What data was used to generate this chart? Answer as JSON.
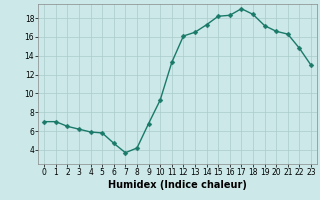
{
  "x": [
    0,
    1,
    2,
    3,
    4,
    5,
    6,
    7,
    8,
    9,
    10,
    11,
    12,
    13,
    14,
    15,
    16,
    17,
    18,
    19,
    20,
    21,
    22,
    23
  ],
  "y": [
    7.0,
    7.0,
    6.5,
    6.2,
    5.9,
    5.8,
    4.7,
    3.7,
    4.2,
    6.8,
    9.3,
    13.3,
    16.1,
    16.5,
    17.3,
    18.2,
    18.3,
    19.0,
    18.4,
    17.2,
    16.6,
    16.3,
    14.8,
    13.0
  ],
  "line_color": "#1a7a6a",
  "marker": "D",
  "marker_size": 2.5,
  "line_width": 1.0,
  "bg_color": "#cce8e8",
  "grid_color": "#aacccc",
  "xlabel": "Humidex (Indice chaleur)",
  "xlabel_fontsize": 7,
  "xlim": [
    -0.5,
    23.5
  ],
  "ylim": [
    2.5,
    19.5
  ],
  "yticks": [
    4,
    6,
    8,
    10,
    12,
    14,
    16,
    18
  ],
  "xticks": [
    0,
    1,
    2,
    3,
    4,
    5,
    6,
    7,
    8,
    9,
    10,
    11,
    12,
    13,
    14,
    15,
    16,
    17,
    18,
    19,
    20,
    21,
    22,
    23
  ],
  "tick_fontsize": 5.5
}
